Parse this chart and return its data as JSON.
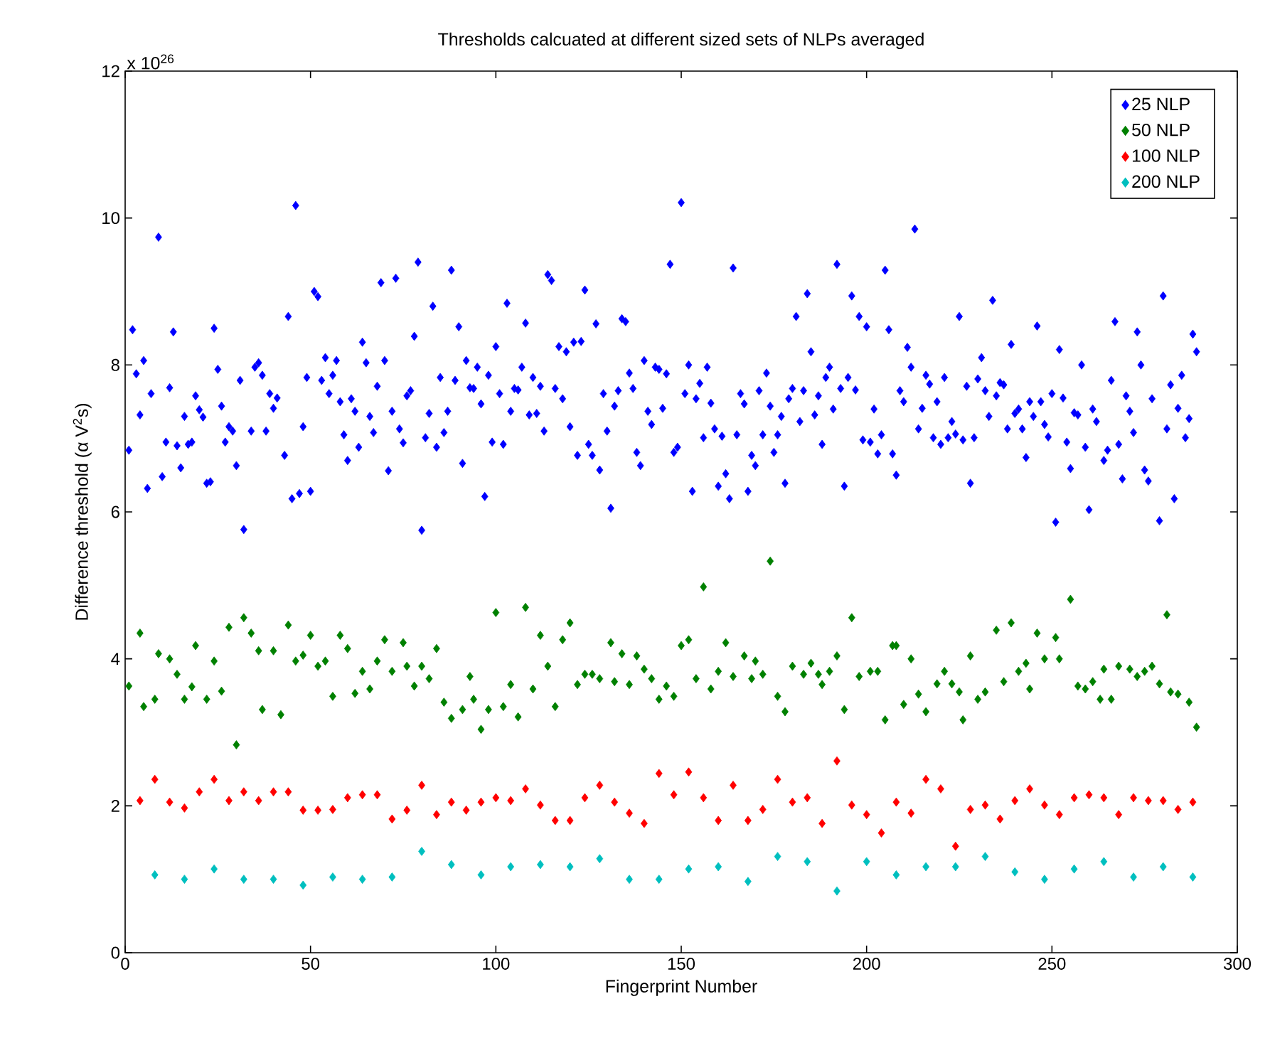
{
  "chart_data": {
    "type": "scatter",
    "title": "Thresholds calcuated at different sized sets of NLPs averaged",
    "xlabel": "Fingerprint Number",
    "ylabel": "Difference threshold (α V$^{2}$s)",
    "annotations": [
      "x 10$^{26}$"
    ],
    "xlim": [
      0,
      300
    ],
    "ylim": [
      0,
      12
    ],
    "xticks": [
      0,
      50,
      100,
      150,
      200,
      250,
      300
    ],
    "yticks": [
      0,
      2,
      4,
      6,
      8,
      10,
      12
    ],
    "legend": "top right",
    "marker": "diamond",
    "series": [
      {
        "name": "25 NLP",
        "color": "#0000ff",
        "x": [
          1,
          2,
          3,
          4,
          5,
          6,
          7,
          9,
          10,
          11,
          12,
          13,
          14,
          15,
          16,
          17,
          18,
          19,
          20,
          21,
          22,
          23,
          24,
          25,
          26,
          27,
          28,
          29,
          30,
          31,
          32,
          34,
          35,
          36,
          37,
          38,
          39,
          40,
          41,
          43,
          44,
          45,
          46,
          47,
          48,
          49,
          50,
          51,
          52,
          53,
          54,
          55,
          56,
          57,
          58,
          59,
          60,
          61,
          62,
          63,
          64,
          65,
          66,
          67,
          68,
          69,
          70,
          71,
          72,
          73,
          74,
          75,
          76,
          77,
          78,
          79,
          80,
          81,
          82,
          83,
          84,
          85,
          86,
          87,
          88,
          89,
          90,
          91,
          92,
          93,
          94,
          95,
          96,
          97,
          98,
          99,
          100,
          101,
          102,
          103,
          104,
          105,
          106,
          107,
          108,
          109,
          110,
          111,
          112,
          113,
          114,
          115,
          116,
          117,
          118,
          119,
          120,
          121,
          122,
          123,
          124,
          125,
          126,
          127,
          128,
          129,
          130,
          131,
          132,
          133,
          134,
          135,
          136,
          137,
          138,
          139,
          140,
          141,
          142,
          143,
          144,
          145,
          146,
          147,
          148,
          149,
          150,
          151,
          152,
          153,
          154,
          155,
          156,
          157,
          158,
          159,
          160,
          161,
          162,
          163,
          164,
          165,
          166,
          167,
          168,
          169,
          170,
          171,
          172,
          173,
          174,
          175,
          176,
          177,
          178,
          179,
          180,
          181,
          182,
          183,
          184,
          185,
          186,
          187,
          188,
          189,
          190,
          191,
          192,
          193,
          194,
          195,
          196,
          197,
          198,
          199,
          200,
          201,
          202,
          203,
          204,
          205,
          206,
          207,
          208,
          209,
          210,
          211,
          212,
          213,
          214,
          215,
          216,
          217,
          218,
          219,
          220,
          221,
          222,
          223,
          224,
          225,
          226,
          227,
          228,
          229,
          230,
          231,
          232,
          233,
          234,
          235,
          236,
          237,
          238,
          239,
          240,
          241,
          242,
          243,
          244,
          245,
          246,
          247,
          248,
          249,
          250,
          251,
          252,
          253,
          254,
          255,
          256,
          257,
          258,
          259,
          260,
          261,
          262,
          264,
          265,
          266,
          267,
          268,
          269,
          270,
          271,
          272,
          273,
          274,
          275,
          276,
          277,
          279,
          280,
          281,
          282,
          283,
          284,
          285,
          286,
          287,
          288,
          289
        ],
        "values": [
          6.84,
          8.48,
          7.88,
          7.32,
          8.06,
          6.32,
          7.61,
          9.74,
          6.48,
          6.95,
          7.69,
          8.45,
          6.9,
          6.6,
          7.3,
          6.92,
          6.95,
          7.58,
          7.39,
          7.29,
          6.39,
          6.41,
          8.5,
          7.94,
          7.44,
          6.95,
          7.16,
          7.1,
          6.63,
          7.79,
          5.76,
          7.1,
          7.97,
          8.03,
          7.86,
          7.1,
          7.61,
          7.41,
          7.55,
          6.77,
          8.66,
          6.18,
          10.17,
          6.25,
          7.16,
          7.83,
          6.28,
          9.0,
          8.93,
          7.79,
          8.1,
          7.61,
          7.86,
          8.06,
          7.5,
          7.05,
          6.7,
          7.54,
          7.37,
          6.88,
          8.31,
          8.03,
          7.3,
          7.08,
          7.71,
          9.12,
          8.06,
          6.56,
          7.37,
          9.18,
          7.13,
          6.94,
          7.58,
          7.65,
          8.39,
          9.4,
          5.75,
          7.01,
          7.34,
          8.8,
          6.88,
          7.83,
          7.08,
          7.37,
          9.29,
          7.79,
          8.52,
          6.66,
          8.06,
          7.69,
          7.68,
          7.97,
          7.47,
          6.21,
          7.86,
          6.95,
          8.25,
          7.61,
          6.92,
          8.84,
          7.37,
          7.68,
          7.66,
          7.97,
          8.57,
          7.32,
          7.83,
          7.34,
          7.71,
          7.1,
          9.23,
          9.15,
          7.68,
          8.25,
          7.54,
          8.18,
          7.16,
          8.31,
          6.77,
          8.32,
          9.02,
          6.92,
          6.77,
          8.56,
          6.57,
          7.61,
          7.1,
          6.05,
          7.44,
          7.65,
          8.63,
          8.59,
          7.89,
          7.68,
          6.81,
          6.63,
          8.06,
          7.37,
          7.19,
          7.97,
          7.94,
          7.41,
          7.88,
          9.37,
          6.81,
          6.88,
          10.21,
          7.61,
          8.0,
          6.28,
          7.54,
          7.75,
          7.01,
          7.97,
          7.48,
          7.13,
          6.35,
          7.03,
          6.52,
          6.18,
          9.32,
          7.05,
          7.61,
          7.47,
          6.28,
          6.77,
          6.63,
          7.65,
          7.05,
          7.89,
          7.44,
          6.81,
          7.05,
          7.3,
          6.39,
          7.54,
          7.68,
          8.66,
          7.23,
          7.65,
          8.97,
          8.18,
          7.32,
          7.58,
          6.92,
          7.83,
          7.97,
          7.4,
          9.37,
          7.68,
          6.35,
          7.83,
          8.94,
          7.66,
          8.66,
          6.98,
          8.52,
          6.95,
          7.4,
          6.79,
          7.05,
          9.29,
          8.48,
          6.79,
          6.5,
          7.65,
          7.5,
          8.24,
          7.97,
          9.85,
          7.13,
          7.41,
          7.86,
          7.74,
          7.01,
          7.5,
          6.92,
          7.83,
          7.01,
          7.23,
          7.06,
          8.66,
          6.98,
          7.71,
          6.39,
          7.01,
          7.81,
          8.1,
          7.65,
          7.3,
          8.88,
          7.58,
          7.76,
          7.73,
          7.13,
          8.28,
          7.34,
          7.4,
          7.13,
          6.74,
          7.5,
          7.3,
          8.53,
          7.5,
          7.19,
          7.02,
          7.61,
          5.86,
          8.21,
          7.55,
          6.95,
          6.59,
          7.35,
          7.32,
          8.0,
          6.88,
          6.03,
          7.4,
          7.23,
          6.7,
          6.84,
          7.79,
          8.59,
          6.92,
          6.45,
          7.58,
          7.37,
          7.08,
          8.45,
          8.0,
          6.57,
          6.42,
          7.54,
          5.88,
          8.94,
          7.13,
          7.73,
          6.18,
          7.41,
          7.86,
          7.01,
          7.27,
          8.42,
          8.18
        ]
      },
      {
        "name": "50 NLP",
        "color": "#008000",
        "x": [
          1,
          4,
          5,
          8,
          9,
          12,
          14,
          16,
          18,
          19,
          22,
          24,
          26,
          28,
          30,
          32,
          34,
          36,
          37,
          40,
          42,
          44,
          46,
          48,
          50,
          52,
          54,
          56,
          58,
          60,
          62,
          64,
          66,
          68,
          70,
          72,
          75,
          76,
          78,
          80,
          82,
          84,
          86,
          88,
          91,
          93,
          94,
          96,
          98,
          100,
          102,
          104,
          106,
          108,
          110,
          112,
          114,
          116,
          118,
          120,
          122,
          124,
          126,
          128,
          131,
          132,
          134,
          136,
          138,
          140,
          142,
          144,
          146,
          148,
          150,
          152,
          154,
          156,
          158,
          160,
          162,
          164,
          167,
          169,
          170,
          172,
          174,
          176,
          178,
          180,
          183,
          185,
          187,
          188,
          190,
          192,
          194,
          196,
          198,
          201,
          203,
          205,
          207,
          208,
          210,
          212,
          214,
          216,
          219,
          221,
          223,
          225,
          226,
          228,
          230,
          232,
          235,
          237,
          239,
          241,
          243,
          244,
          246,
          248,
          251,
          252,
          255,
          257,
          259,
          261,
          263,
          264,
          266,
          268,
          271,
          273,
          275,
          277,
          279,
          281,
          282,
          284,
          287,
          289
        ],
        "values": [
          3.63,
          4.35,
          3.35,
          3.45,
          4.07,
          4.0,
          3.79,
          3.45,
          3.62,
          4.18,
          3.45,
          3.97,
          3.56,
          4.43,
          2.83,
          4.56,
          4.35,
          4.11,
          3.31,
          4.11,
          3.24,
          4.46,
          3.97,
          4.05,
          4.32,
          3.9,
          3.97,
          3.49,
          4.32,
          4.14,
          3.53,
          3.83,
          3.59,
          3.97,
          4.26,
          3.83,
          4.22,
          3.9,
          3.63,
          3.9,
          3.73,
          4.14,
          3.41,
          3.19,
          3.31,
          3.76,
          3.45,
          3.04,
          3.31,
          4.63,
          3.35,
          3.65,
          3.21,
          4.7,
          3.59,
          4.32,
          3.9,
          3.35,
          4.26,
          4.49,
          3.65,
          3.79,
          3.79,
          3.73,
          4.22,
          3.69,
          4.07,
          3.65,
          4.04,
          3.86,
          3.73,
          3.45,
          3.63,
          3.49,
          4.18,
          4.26,
          3.73,
          4.98,
          3.59,
          3.83,
          4.22,
          3.76,
          4.04,
          3.73,
          3.97,
          3.79,
          5.33,
          3.49,
          3.28,
          3.9,
          3.79,
          3.94,
          3.79,
          3.65,
          3.83,
          4.04,
          3.31,
          4.56,
          3.76,
          3.83,
          3.83,
          3.17,
          4.18,
          4.18,
          3.38,
          4.0,
          3.52,
          3.28,
          3.66,
          3.83,
          3.66,
          3.55,
          3.17,
          4.04,
          3.45,
          3.55,
          4.39,
          3.69,
          4.49,
          3.83,
          3.94,
          3.59,
          4.35,
          4.0,
          4.29,
          4.0,
          4.81,
          3.63,
          3.59,
          3.69,
          3.45,
          3.86,
          3.45,
          3.9,
          3.86,
          3.76,
          3.83,
          3.9,
          3.66,
          4.6,
          3.55,
          3.52,
          3.41,
          3.07
        ]
      },
      {
        "name": "100 NLP",
        "color": "#ff0000",
        "x": [
          4,
          8,
          12,
          16,
          20,
          24,
          28,
          32,
          36,
          40,
          44,
          48,
          52,
          56,
          60,
          64,
          68,
          72,
          76,
          80,
          84,
          88,
          92,
          96,
          100,
          104,
          108,
          112,
          116,
          120,
          124,
          128,
          132,
          136,
          140,
          144,
          148,
          152,
          156,
          160,
          164,
          168,
          172,
          176,
          180,
          184,
          188,
          192,
          196,
          200,
          204,
          208,
          212,
          216,
          220,
          224,
          228,
          232,
          236,
          240,
          244,
          248,
          252,
          256,
          260,
          264,
          268,
          272,
          276,
          280,
          284,
          288
        ],
        "values": [
          2.07,
          2.36,
          2.05,
          1.97,
          2.19,
          2.36,
          2.07,
          2.19,
          2.07,
          2.19,
          2.19,
          1.94,
          1.94,
          1.95,
          2.11,
          2.15,
          2.15,
          1.82,
          1.94,
          2.28,
          1.88,
          2.05,
          1.94,
          2.05,
          2.11,
          2.07,
          2.23,
          2.01,
          1.8,
          1.8,
          2.11,
          2.28,
          2.05,
          1.9,
          1.76,
          2.44,
          2.15,
          2.46,
          2.11,
          1.8,
          2.28,
          1.8,
          1.95,
          2.36,
          2.05,
          2.11,
          1.76,
          2.61,
          2.01,
          1.88,
          1.63,
          2.05,
          1.9,
          2.36,
          2.23,
          1.45,
          1.95,
          2.01,
          1.82,
          2.07,
          2.23,
          2.01,
          1.88,
          2.11,
          2.15,
          2.11,
          1.88,
          2.11,
          2.07,
          2.07,
          1.95,
          2.05
        ]
      },
      {
        "name": "200 NLP",
        "color": "#00bfbf",
        "x": [
          8,
          16,
          24,
          32,
          40,
          48,
          56,
          64,
          72,
          80,
          88,
          96,
          104,
          112,
          120,
          128,
          136,
          144,
          152,
          160,
          168,
          176,
          184,
          192,
          200,
          208,
          216,
          224,
          232,
          240,
          248,
          256,
          264,
          272,
          280,
          288
        ],
        "values": [
          1.06,
          1.0,
          1.14,
          1.0,
          1.0,
          0.92,
          1.03,
          1.0,
          1.03,
          1.38,
          1.2,
          1.06,
          1.17,
          1.2,
          1.17,
          1.28,
          1.0,
          1.0,
          1.14,
          1.17,
          0.97,
          1.31,
          1.24,
          0.84,
          1.24,
          1.06,
          1.17,
          1.17,
          1.31,
          1.1,
          1.0,
          1.14,
          1.24,
          1.03,
          1.17,
          1.03
        ]
      }
    ]
  }
}
